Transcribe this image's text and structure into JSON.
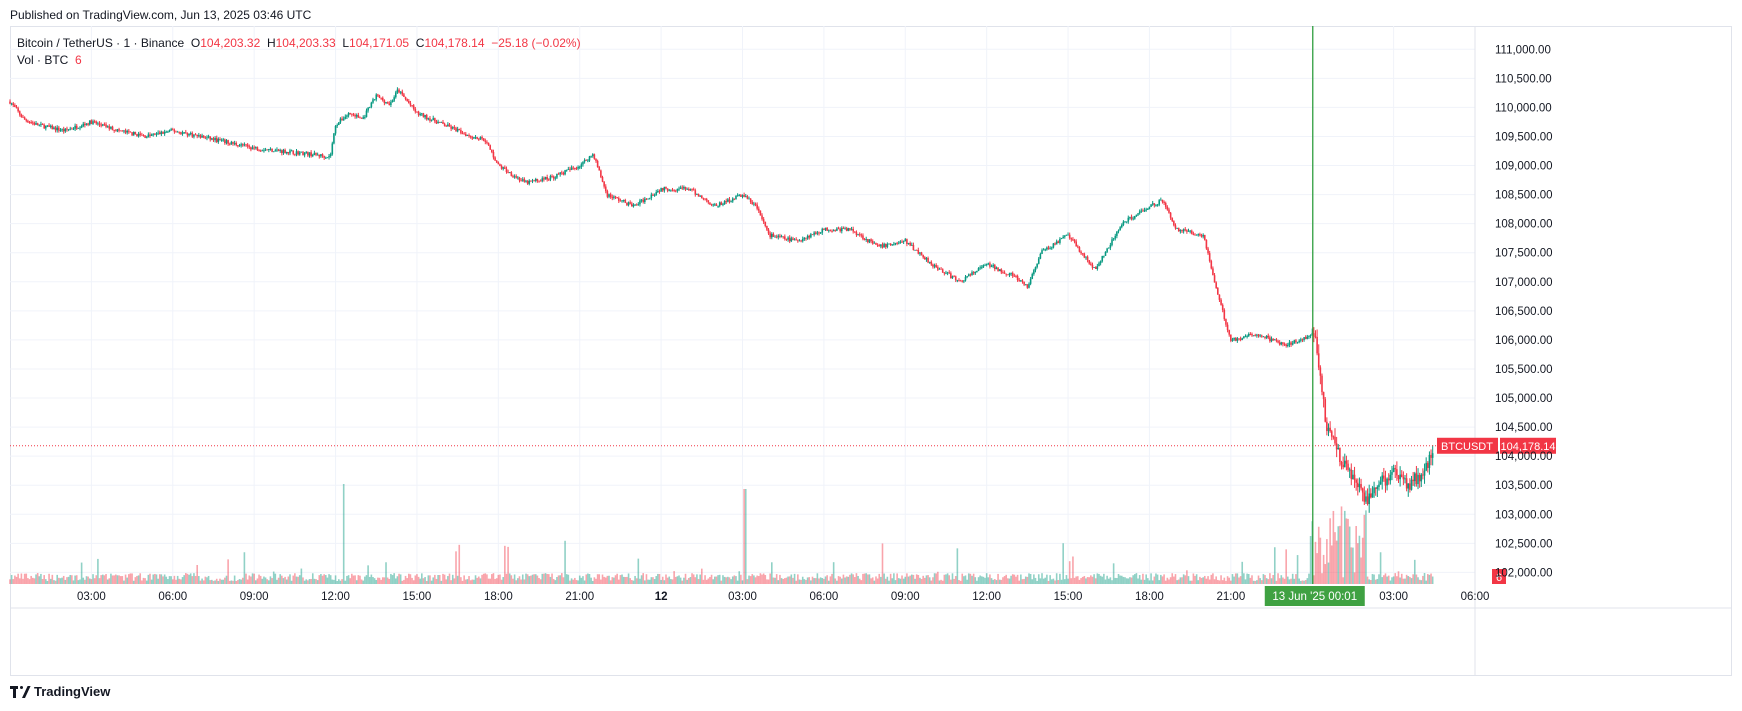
{
  "published": "Published on TradingView.com, Jun 13, 2025 03:46 UTC",
  "footer": {
    "brand": "TradingView"
  },
  "legend": {
    "symbol": "Bitcoin / TetherUS · 1 · Binance",
    "o_label": "O",
    "o": "104,203.32",
    "h_label": "H",
    "h": "104,203.33",
    "l_label": "L",
    "l": "104,171.05",
    "c_label": "C",
    "c": "104,178.14",
    "change": "−25.18 (−0.02%)",
    "vol_label": "Vol · BTC",
    "vol": "6"
  },
  "colors": {
    "up": "#089981",
    "down": "#f23645",
    "crosshair": "#2e9e3e",
    "grid": "#f0f3fa"
  },
  "chart_data": {
    "type": "line",
    "title": "Bitcoin / TetherUS · 1 · Binance",
    "ylim": [
      101800,
      111400
    ],
    "y_ticks": [
      "111,000.00",
      "110,500.00",
      "110,000.00",
      "109,500.00",
      "109,000.00",
      "108,500.00",
      "108,000.00",
      "107,500.00",
      "107,000.00",
      "106,500.00",
      "106,000.00",
      "105,500.00",
      "105,000.00",
      "104,500.00",
      "104,000.00",
      "103,500.00",
      "103,000.00",
      "102,500.00",
      "102,000.00"
    ],
    "y_tick_values": [
      111000,
      110500,
      110000,
      109500,
      109000,
      108500,
      108000,
      107500,
      107000,
      106500,
      106000,
      105500,
      105000,
      104500,
      104000,
      103500,
      103000,
      102500,
      102000
    ],
    "x_ticks": [
      "03:00",
      "06:00",
      "09:00",
      "12:00",
      "15:00",
      "18:00",
      "21:00",
      "12",
      "03:00",
      "06:00",
      "09:00",
      "12:00",
      "15:00",
      "18:00",
      "21:00",
      "03:00",
      "06:00"
    ],
    "x_tick_hours": [
      3,
      6,
      9,
      12,
      15,
      18,
      21,
      24,
      27,
      30,
      33,
      36,
      39,
      42,
      45,
      51,
      54
    ],
    "xlim_hours": [
      0,
      54
    ],
    "price_series": {
      "name": "BTCUSDT",
      "hours": [
        0,
        0.5,
        1,
        2,
        3,
        4,
        5,
        6,
        7,
        8,
        9,
        10,
        11,
        11.8,
        12,
        12.5,
        13,
        13.5,
        14,
        14.3,
        15,
        16,
        17,
        17.5,
        18,
        19,
        20,
        21,
        21.5,
        22,
        23,
        24,
        25,
        26,
        27,
        27.5,
        28,
        29,
        30,
        31,
        32,
        33,
        34,
        35,
        36,
        37,
        37.5,
        38,
        39,
        40,
        41,
        42,
        42.5,
        43,
        44,
        44.5,
        45,
        46,
        47,
        48,
        48.2,
        48.5,
        49,
        49.5,
        50,
        50.5,
        51,
        51.5,
        52,
        52.5
      ],
      "prices": [
        110100,
        109800,
        109700,
        109600,
        109750,
        109600,
        109500,
        109600,
        109500,
        109400,
        109300,
        109250,
        109200,
        109150,
        109700,
        109900,
        109800,
        110200,
        110050,
        110300,
        109900,
        109700,
        109500,
        109450,
        109000,
        108700,
        108800,
        109000,
        109200,
        108500,
        108300,
        108600,
        108600,
        108300,
        108500,
        108300,
        107800,
        107700,
        107900,
        107900,
        107600,
        107700,
        107300,
        107000,
        107300,
        107100,
        106900,
        107500,
        107800,
        107200,
        108000,
        108300,
        108400,
        107900,
        107800,
        106800,
        106000,
        106100,
        105900,
        106100,
        105800,
        104600,
        104000,
        103600,
        103200,
        103500,
        103800,
        103500,
        103700,
        104000,
        104178
      ]
    },
    "volume_series": {
      "name": "Vol · BTC",
      "last": 6
    },
    "last_price_label": "BTCUSDT",
    "last_price": "104,178.14",
    "volume_badge": "6",
    "crosshair_label": "13 Jun '25   00:01"
  }
}
